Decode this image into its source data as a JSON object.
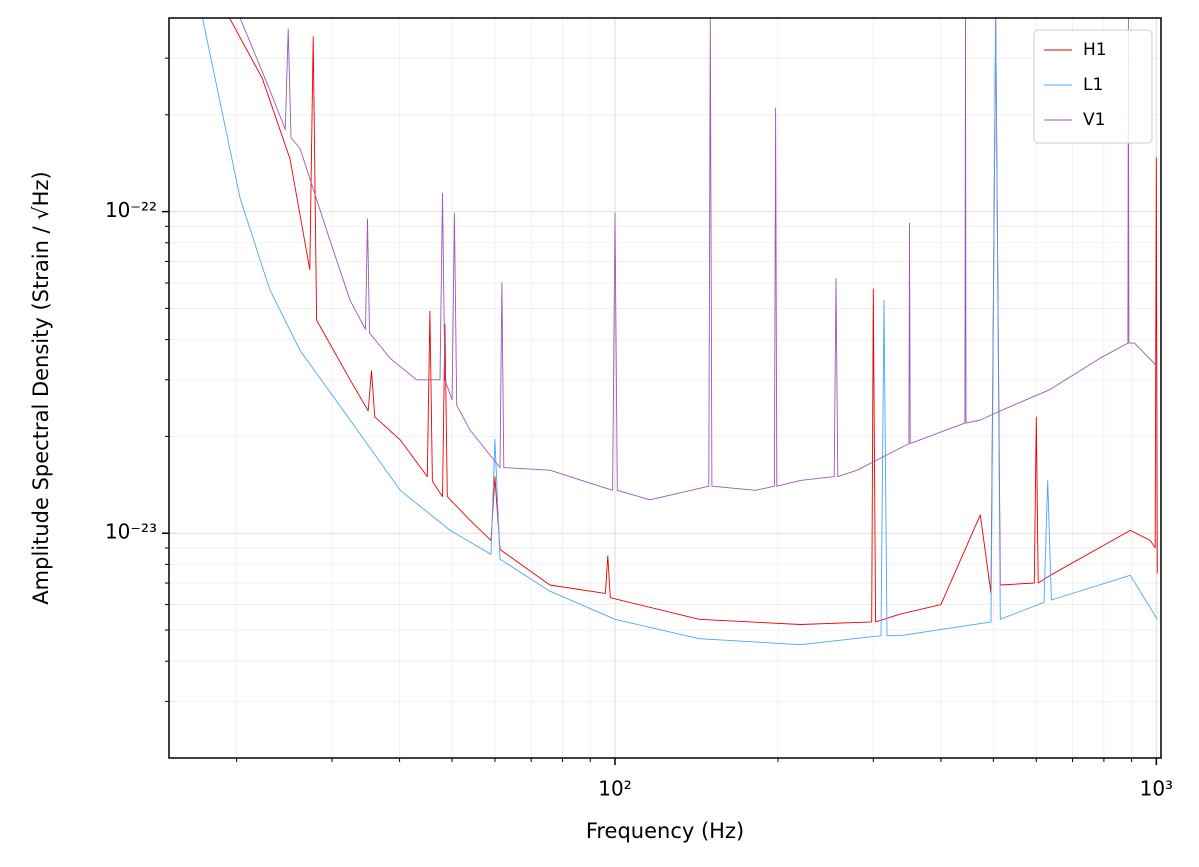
{
  "chart_data": {
    "type": "line",
    "xlabel": "Frequency (Hz)",
    "ylabel": "Amplitude Spectral Density (Strain / √Hz)",
    "xscale": "log",
    "yscale": "log",
    "grid": true,
    "legend": "upper right",
    "xlim": [
      15,
      1020
    ],
    "ylim": [
      2e-24,
      4e-22
    ],
    "xticks": [
      {
        "value": 100,
        "label": "10²"
      },
      {
        "value": 1000,
        "label": "10³"
      }
    ],
    "yticks": [
      {
        "value": 1e-23,
        "label": "10⁻²³"
      },
      {
        "value": 1e-22,
        "label": "10⁻²²"
      }
    ],
    "xminorticks": [
      20,
      30,
      40,
      50,
      60,
      70,
      80,
      90,
      200,
      300,
      400,
      500,
      600,
      700,
      800,
      900
    ],
    "yminorticks": [
      3e-24,
      4e-24,
      5e-24,
      6e-24,
      7e-24,
      8e-24,
      9e-24,
      2e-23,
      3e-23,
      4e-23,
      5e-23,
      6e-23,
      7e-23,
      8e-23,
      9e-23,
      2e-22,
      3e-22
    ],
    "series": [
      {
        "name": "H1",
        "color": "#ee0000",
        "x": [
          19.4,
          22.3,
          25.1,
          27.3,
          27.7,
          28.1,
          32.4,
          35,
          35.5,
          36,
          40.1,
          45,
          45.5,
          46,
          48,
          48.5,
          49,
          53.9,
          59,
          60,
          61.3,
          75.8,
          96,
          97,
          98,
          143,
          220,
          298,
          300,
          303,
          336,
          400,
          473,
          495,
          505,
          515,
          595,
          600,
          605,
          637,
          895,
          974,
          995,
          1000,
          1004
        ],
        "values": [
          4e-22,
          2.6e-22,
          1.46e-22,
          6.6e-23,
          3.5e-22,
          4.6e-23,
          3e-23,
          2.4e-23,
          3.2e-23,
          2.3e-23,
          1.95e-23,
          1.5e-23,
          4.9e-23,
          1.45e-23,
          1.3e-23,
          4.46e-23,
          1.3e-23,
          1.1e-23,
          9.5e-24,
          1.5e-23,
          8.9e-24,
          6.9e-24,
          6.5e-24,
          8.5e-24,
          6.3e-24,
          5.4e-24,
          5.2e-24,
          5.3e-24,
          5.75e-23,
          5.3e-24,
          5.6e-24,
          6e-24,
          1.14e-23,
          6.5e-24,
          4e-22,
          6.9e-24,
          7e-24,
          2.3e-23,
          7e-24,
          7.4e-24,
          1.02e-23,
          9.5e-24,
          9e-24,
          1.47e-22,
          7.5e-24
        ]
      },
      {
        "name": "L1",
        "color": "#4ba6ff",
        "x": [
          17.3,
          20.3,
          23,
          26.2,
          32.4,
          40.1,
          49.6,
          59,
          60,
          61.3,
          75.8,
          100,
          143,
          220,
          310,
          314,
          318,
          336,
          495,
          505,
          515,
          620,
          630,
          640,
          895,
          1004
        ],
        "values": [
          4e-22,
          1.1e-22,
          5.75e-23,
          3.7e-23,
          2.25e-23,
          1.36e-23,
          1.02e-23,
          8.6e-24,
          1.96e-23,
          8.3e-24,
          6.6e-24,
          5.4e-24,
          4.7e-24,
          4.5e-24,
          4.8e-24,
          5.3e-23,
          4.8e-24,
          4.8e-24,
          5.3e-24,
          4e-22,
          5.4e-24,
          6.1e-24,
          1.46e-23,
          6.2e-24,
          7.4e-24,
          5.4e-24
        ]
      },
      {
        "name": "V1",
        "color": "#9b59b6",
        "x": [
          20.3,
          23,
          24.6,
          24.9,
          25.2,
          26.2,
          29.7,
          32.4,
          34.6,
          34.9,
          35.2,
          38.4,
          43,
          47.5,
          48,
          48.5,
          50,
          50.5,
          51,
          53.9,
          61.3,
          61.8,
          62.3,
          75.8,
          99,
          100,
          101,
          116,
          149,
          150,
          151,
          182,
          197,
          198,
          199,
          220,
          254,
          256,
          258,
          280,
          349,
          350,
          351,
          380,
          443,
          444,
          445,
          473,
          515,
          637,
          787,
          886,
          888,
          890,
          911,
          1004
        ],
        "values": [
          4e-22,
          2.4e-22,
          1.8e-22,
          3.7e-22,
          1.7e-22,
          1.57e-22,
          8.2e-23,
          5.3e-23,
          4.3e-23,
          9.5e-23,
          4.2e-23,
          3.5e-23,
          3e-23,
          3e-23,
          1.14e-22,
          3e-23,
          2.6e-23,
          9.9e-23,
          2.5e-23,
          2.1e-23,
          1.6e-23,
          6.03e-23,
          1.6e-23,
          1.57e-23,
          1.36e-23,
          9.9e-23,
          1.36e-23,
          1.27e-23,
          1.4e-23,
          4e-22,
          1.4e-23,
          1.36e-23,
          1.4e-23,
          2.1e-22,
          1.4e-23,
          1.46e-23,
          1.5e-23,
          6.2e-23,
          1.5e-23,
          1.57e-23,
          1.9e-23,
          9.2e-23,
          1.9e-23,
          2e-23,
          2.2e-23,
          4e-22,
          2.2e-23,
          2.25e-23,
          2.4e-23,
          2.8e-23,
          3.5e-23,
          3.9e-23,
          4e-22,
          3.9e-23,
          3.9e-23,
          3.3e-23
        ]
      }
    ]
  }
}
